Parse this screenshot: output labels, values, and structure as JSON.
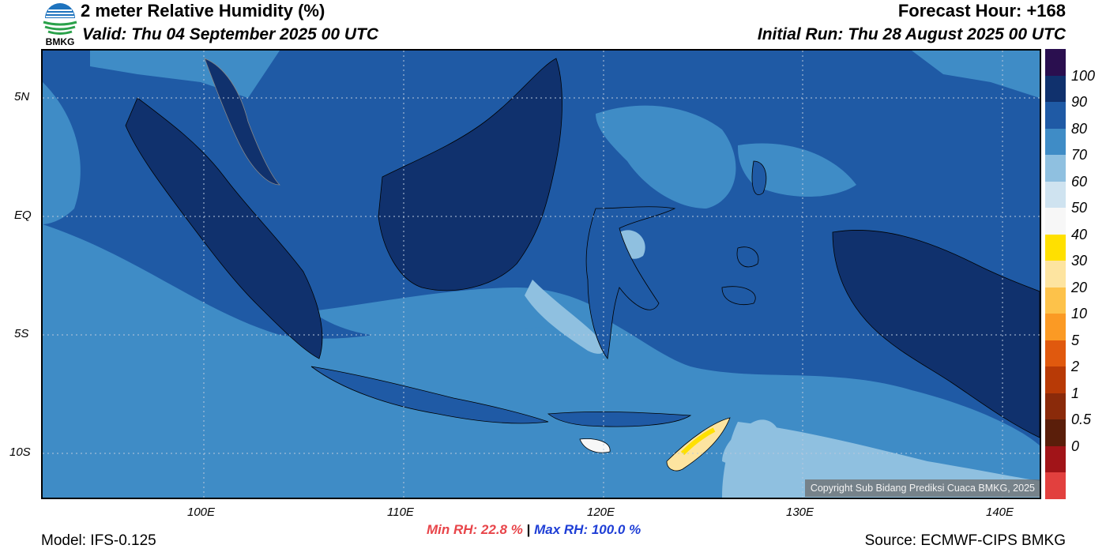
{
  "header": {
    "title": "2 meter Relative Humidity (%)",
    "valid": "Valid: Thu 04 September 2025 00 UTC",
    "forecast_hour": "Forecast Hour: +168",
    "initial_run": "Initial Run: Thu 28 August 2025 00 UTC"
  },
  "logo": {
    "text": "BMKG",
    "icon": "bmkg-logo-icon"
  },
  "map": {
    "lat_labels": [
      "5N",
      "EQ",
      "5S",
      "10S"
    ],
    "lon_labels": [
      "100E",
      "110E",
      "120E",
      "130E",
      "140E"
    ],
    "copyright": "Copyright Sub Bidang Prediksi Cuaca BMKG, 2025"
  },
  "colorbar": {
    "labels": [
      "100",
      "90",
      "80",
      "70",
      "60",
      "50",
      "40",
      "30",
      "20",
      "10",
      "5",
      "2",
      "1",
      "0.5",
      "0"
    ],
    "colors": [
      "#2a0f4f",
      "#10316d",
      "#1f5aa5",
      "#3f8cc6",
      "#8fc0e0",
      "#cfe3f0",
      "#f7f7f7",
      "#ffe000",
      "#fde4a0",
      "#fdc24a",
      "#fb9a24",
      "#e0590e",
      "#b83a06",
      "#8a2a0a",
      "#5a1e0a",
      "#a11418",
      "#e2403e"
    ]
  },
  "footer": {
    "model": "Model: IFS-0.125",
    "min_rh": "Min RH:  22.8 %",
    "separator": "|",
    "max_rh": "Max RH: 100.0 %",
    "source": "Source: ECMWF-CIPS BMKG"
  }
}
